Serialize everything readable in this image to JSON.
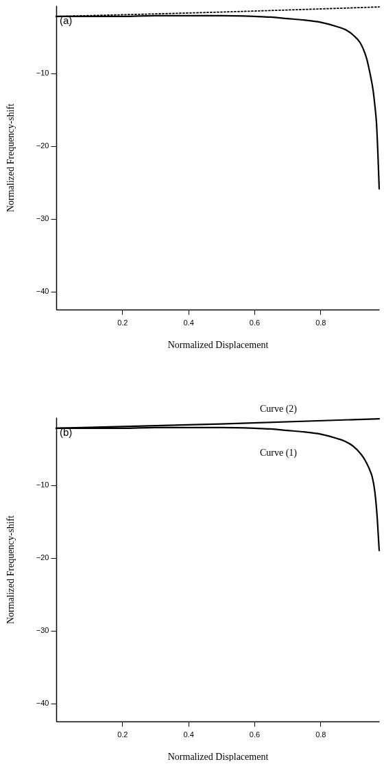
{
  "chart_data": [
    {
      "type": "line",
      "xlabel": "Normalized Displacement",
      "ylabel": "Normalized Frequency-shift",
      "xlim": [
        0,
        0.978
      ],
      "ylim": [
        -42.5,
        -0.7
      ],
      "xticks": [
        0.2,
        0.4,
        0.6,
        0.8
      ],
      "yticks": [
        -10,
        -20,
        -30,
        -40
      ],
      "annotations": [
        "(a)"
      ],
      "series": [
        {
          "color": "#000000",
          "line_style": "dotted",
          "x": [
            0,
            0.5,
            0.978
          ],
          "values": [
            -2.2,
            -1.6,
            -0.9
          ]
        },
        {
          "color": "#000000",
          "line_style": "solid",
          "x": [
            0,
            0.1,
            0.2,
            0.3,
            0.4,
            0.5,
            0.6,
            0.65,
            0.7,
            0.75,
            0.8,
            0.85,
            0.875,
            0.9,
            0.92,
            0.93,
            0.94,
            0.95,
            0.96,
            0.965,
            0.97,
            0.974,
            0.978
          ],
          "values": [
            -2.2,
            -2.2,
            -2.2,
            -2.1,
            -2.1,
            -2.1,
            -2.2,
            -2.3,
            -2.5,
            -2.7,
            -3.0,
            -3.6,
            -4.0,
            -4.8,
            -5.8,
            -6.7,
            -8,
            -10,
            -12.5,
            -14.5,
            -17,
            -21,
            -25.9
          ]
        }
      ]
    },
    {
      "type": "line",
      "xlabel": "Normalized Displacement",
      "ylabel": "Normalized Frequency-shift",
      "xlim": [
        0,
        0.978
      ],
      "ylim": [
        -42.5,
        -0.7
      ],
      "xticks": [
        0.2,
        0.4,
        0.6,
        0.8
      ],
      "yticks": [
        -10,
        -20,
        -30,
        -40
      ],
      "annotations": [
        "(b)"
      ],
      "series": [
        {
          "name": "Curve (2)",
          "color": "#000000",
          "line_style": "solid",
          "x": [
            0,
            0.5,
            0.978
          ],
          "values": [
            -2.2,
            -1.6,
            -0.9
          ]
        },
        {
          "name": "Curve (1)",
          "color": "#000000",
          "line_style": "solid",
          "x": [
            0,
            0.1,
            0.2,
            0.3,
            0.4,
            0.5,
            0.6,
            0.65,
            0.7,
            0.75,
            0.8,
            0.85,
            0.875,
            0.9,
            0.92,
            0.93,
            0.94,
            0.95,
            0.957,
            0.965,
            0.972,
            0.978
          ],
          "values": [
            -2.2,
            -2.2,
            -2.2,
            -2.1,
            -2.1,
            -2.1,
            -2.2,
            -2.3,
            -2.5,
            -2.7,
            -3.0,
            -3.6,
            -4.0,
            -4.7,
            -5.6,
            -6.2,
            -7,
            -8,
            -8.9,
            -11,
            -14.5,
            -19
          ]
        }
      ]
    }
  ]
}
